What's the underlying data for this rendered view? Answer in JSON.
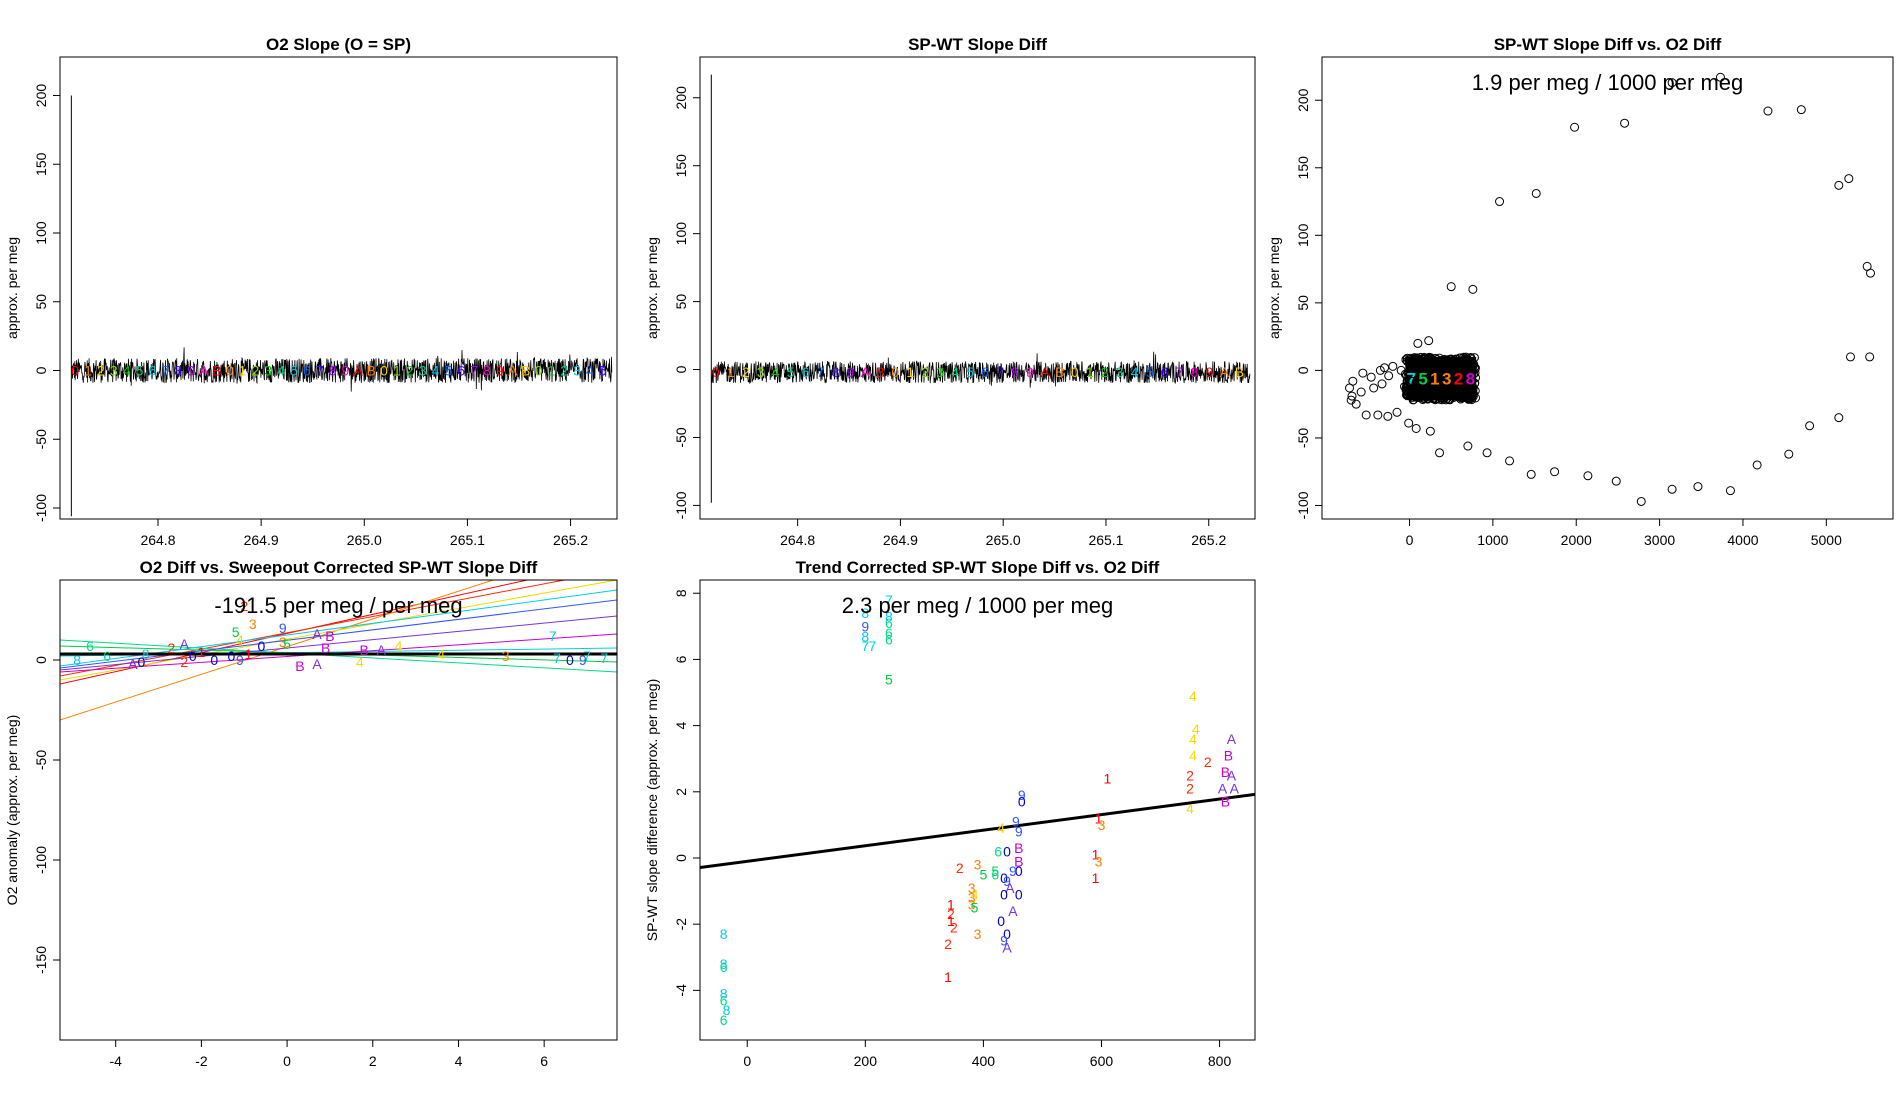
{
  "palette": {
    "digits": {
      "0": "#0000cc",
      "1": "#ff0000",
      "2": "#ff2a00",
      "3": "#ff8000",
      "4": "#f5d800",
      "5": "#00cc44",
      "6": "#00dd88",
      "7": "#00d4d4",
      "8": "#00ccee",
      "9": "#3355ff",
      "A": "#7733dd",
      "B": "#cc00cc"
    },
    "rainbow": [
      "#ff0000",
      "#ff8000",
      "#ffd000",
      "#80e000",
      "#00cc00",
      "#00cc88",
      "#00c8e0",
      "#0066ff",
      "#4400ff",
      "#aa00ff",
      "#ff00cc"
    ],
    "ink": "#000000"
  },
  "chart_data": [
    {
      "id": "o2-slope",
      "type": "line",
      "title": "O2 Slope (O = SP)",
      "xlabel": "",
      "ylabel": "approx. per meg",
      "xlim": [
        264.705,
        265.245
      ],
      "ylim": [
        -108,
        228
      ],
      "xticks": [
        264.8,
        264.9,
        265.0,
        265.1,
        265.2
      ],
      "xtick_labels": [
        "264.8",
        "264.9",
        "265.0",
        "265.1",
        "265.2"
      ],
      "yticks": [
        -100,
        -50,
        0,
        50,
        100,
        150,
        200
      ],
      "ytick_labels": [
        "-100",
        "-50",
        "0",
        "50",
        "100",
        "150",
        "200"
      ],
      "spike": {
        "x": 264.716,
        "low": -106,
        "high": 200
      },
      "series": {
        "x_start": 264.716,
        "x_end": 265.24,
        "center": 0,
        "amplitude": 9,
        "label_count": 42
      }
    },
    {
      "id": "spwt-slope-diff",
      "type": "line",
      "title": "SP-WT Slope Diff",
      "xlabel": "",
      "ylabel": "approx. per meg",
      "xlim": [
        264.705,
        265.245
      ],
      "ylim": [
        -110,
        230
      ],
      "xticks": [
        264.8,
        264.9,
        265.0,
        265.1,
        265.2
      ],
      "xtick_labels": [
        "264.8",
        "264.9",
        "265.0",
        "265.1",
        "265.2"
      ],
      "yticks": [
        -100,
        -50,
        0,
        50,
        100,
        150,
        200
      ],
      "ytick_labels": [
        "-100",
        "-50",
        "0",
        "50",
        "100",
        "150",
        "200"
      ],
      "spike": {
        "x": 264.716,
        "low": -98,
        "high": 217
      },
      "series": {
        "x_start": 264.716,
        "x_end": 265.24,
        "center": -2,
        "amplitude": 8,
        "label_count": 36
      }
    },
    {
      "id": "spwt-vs-o2",
      "type": "scatter",
      "title": "SP-WT Slope Diff vs. O2 Diff",
      "annotation": "1.9 per meg / 1000 per meg",
      "xlabel": "",
      "ylabel": "approx. per meg",
      "xlim": [
        -1050,
        5800
      ],
      "ylim": [
        -110,
        232
      ],
      "xticks": [
        0,
        1000,
        2000,
        3000,
        4000,
        5000
      ],
      "xtick_labels": [
        "0",
        "1000",
        "2000",
        "3000",
        "4000",
        "5000"
      ],
      "yticks": [
        -100,
        -50,
        0,
        50,
        100,
        150,
        200
      ],
      "ytick_labels": [
        "-100",
        "-50",
        "0",
        "50",
        "100",
        "150",
        "200"
      ],
      "points": [
        [
          3730,
          217
        ],
        [
          3150,
          213
        ],
        [
          4700,
          193
        ],
        [
          4300,
          192
        ],
        [
          2580,
          183
        ],
        [
          1980,
          180
        ],
        [
          1520,
          131
        ],
        [
          1080,
          125
        ],
        [
          5270,
          142
        ],
        [
          5150,
          137
        ],
        [
          5490,
          77
        ],
        [
          5530,
          72
        ],
        [
          5290,
          10
        ],
        [
          5520,
          10
        ],
        [
          5150,
          -35
        ],
        [
          4800,
          -41
        ],
        [
          4550,
          -62
        ],
        [
          4170,
          -70
        ],
        [
          3850,
          -89
        ],
        [
          3460,
          -86
        ],
        [
          3150,
          -88
        ],
        [
          2780,
          -97
        ],
        [
          2480,
          -82
        ],
        [
          2140,
          -78
        ],
        [
          1740,
          -75
        ],
        [
          1460,
          -77
        ],
        [
          1200,
          -67
        ],
        [
          930,
          -61
        ],
        [
          700,
          -56
        ],
        [
          360,
          -61
        ],
        [
          250,
          -45
        ],
        [
          80,
          -43
        ],
        [
          -10,
          -39
        ],
        [
          -150,
          -31
        ],
        [
          -260,
          -34
        ],
        [
          -380,
          -33
        ],
        [
          -520,
          -33
        ],
        [
          -640,
          -25
        ],
        [
          -700,
          -22
        ],
        [
          -720,
          -13
        ],
        [
          -680,
          -8
        ],
        [
          -560,
          -2
        ],
        [
          -460,
          -5
        ],
        [
          -350,
          0
        ],
        [
          -300,
          2
        ],
        [
          -250,
          -4
        ],
        [
          -200,
          3
        ],
        [
          -330,
          -10
        ],
        [
          -430,
          -13
        ],
        [
          -580,
          -16
        ],
        [
          -690,
          -19
        ],
        [
          500,
          62
        ],
        [
          760,
          60
        ],
        [
          -100,
          0
        ],
        [
          -60,
          -12
        ],
        [
          40,
          -8
        ],
        [
          100,
          20
        ],
        [
          230,
          22
        ]
      ],
      "cluster": {
        "x_min": -50,
        "x_max": 800,
        "y_min": -22,
        "y_max": 10,
        "labels": [
          "7",
          "5",
          "1",
          "3",
          "2",
          "8"
        ]
      }
    },
    {
      "id": "o2diff-vs-corrected",
      "type": "scatter",
      "title": "O2 Diff vs. Sweepout Corrected SP-WT Slope Diff",
      "annotation": "-191.5 per meg / per meg",
      "xlabel": "",
      "ylabel": "O2 anomaly (approx. per meg)",
      "xlim": [
        -5.3,
        7.7
      ],
      "ylim": [
        -190,
        40
      ],
      "xticks": [
        -4,
        -2,
        0,
        2,
        4,
        6
      ],
      "xtick_labels": [
        "-4",
        "-2",
        "0",
        "2",
        "4",
        "6"
      ],
      "yticks": [
        -150,
        -100,
        -50,
        0
      ],
      "ytick_labels": [
        "-150",
        "-100",
        "-50",
        "0"
      ],
      "fit_line": {
        "intercept": 3,
        "slope": 0
      },
      "group_lines": [
        {
          "label": "1",
          "x0": -5.3,
          "y0": -12,
          "x1": 7.7,
          "y1": 50
        },
        {
          "label": "2",
          "x0": -5.3,
          "y0": -8,
          "x1": 7.7,
          "y1": 45
        },
        {
          "label": "3",
          "x0": -5.3,
          "y0": -30,
          "x1": 7.7,
          "y1": 60
        },
        {
          "label": "4",
          "x0": -5.3,
          "y0": -10,
          "x1": 7.7,
          "y1": 40
        },
        {
          "label": "5",
          "x0": -5.3,
          "y0": 7,
          "x1": 7.7,
          "y1": -1
        },
        {
          "label": "6",
          "x0": -5.3,
          "y0": 10,
          "x1": 7.7,
          "y1": -6
        },
        {
          "label": "7",
          "x0": -5.3,
          "y0": 2,
          "x1": 7.7,
          "y1": 6
        },
        {
          "label": "8",
          "x0": -5.3,
          "y0": -3,
          "x1": 7.7,
          "y1": 35
        },
        {
          "label": "9",
          "x0": -5.3,
          "y0": -4,
          "x1": 7.7,
          "y1": 30
        },
        {
          "label": "A",
          "x0": -5.3,
          "y0": -5,
          "x1": 7.7,
          "y1": 22
        },
        {
          "label": "B",
          "x0": -5.3,
          "y0": -6,
          "x1": 7.7,
          "y1": 13
        }
      ],
      "points": [
        [
          "6",
          -4.6,
          7
        ],
        [
          "8",
          -4.9,
          0
        ],
        [
          "6",
          -4.2,
          2
        ],
        [
          "8",
          -3.3,
          3
        ],
        [
          "A",
          -3.6,
          -2
        ],
        [
          "0",
          -3.4,
          -1
        ],
        [
          "A",
          -2.4,
          8
        ],
        [
          "2",
          -2.7,
          6
        ],
        [
          "2",
          -2.4,
          -1
        ],
        [
          "1",
          -2.0,
          4
        ],
        [
          "0",
          -2.2,
          2
        ],
        [
          "0",
          -1.7,
          0
        ],
        [
          "0",
          -1.3,
          2
        ],
        [
          "9",
          -1.1,
          0
        ],
        [
          "1",
          -0.9,
          3
        ],
        [
          "2",
          -1.0,
          27
        ],
        [
          "5",
          -1.2,
          14
        ],
        [
          "3",
          -0.8,
          18
        ],
        [
          "4",
          -1.1,
          10
        ],
        [
          "9",
          -0.1,
          16
        ],
        [
          "0",
          -0.6,
          7
        ],
        [
          "3",
          -0.1,
          9
        ],
        [
          "5",
          0.0,
          8
        ],
        [
          "B",
          0.3,
          -3
        ],
        [
          "A",
          0.7,
          -2
        ],
        [
          "A",
          0.7,
          13
        ],
        [
          "B",
          1.0,
          12
        ],
        [
          "B",
          0.9,
          6
        ],
        [
          "A",
          2.2,
          5
        ],
        [
          "B",
          1.8,
          5
        ],
        [
          "4",
          1.7,
          -1
        ],
        [
          "4",
          2.6,
          7
        ],
        [
          "4",
          3.6,
          3
        ],
        [
          "3",
          5.1,
          2
        ],
        [
          "7",
          6.2,
          12
        ],
        [
          "7",
          6.3,
          1
        ],
        [
          "7",
          7.0,
          2
        ],
        [
          "7",
          7.4,
          1
        ],
        [
          "0",
          6.6,
          0
        ],
        [
          "9",
          6.9,
          0
        ]
      ]
    },
    {
      "id": "trend-corrected",
      "type": "scatter",
      "title": "Trend Corrected SP-WT Slope Diff vs. O2 Diff",
      "annotation": "2.3 per meg / 1000 per meg",
      "xlabel": "",
      "ylabel": "SP-WT slope difference (approx. per meg)",
      "xlim": [
        -80,
        860
      ],
      "ylim": [
        -5.5,
        8.4
      ],
      "xticks": [
        0,
        200,
        400,
        600,
        800
      ],
      "xtick_labels": [
        "0",
        "200",
        "400",
        "600",
        "800"
      ],
      "yticks": [
        -4,
        -2,
        0,
        2,
        4,
        6,
        8
      ],
      "ytick_labels": [
        "-4",
        "-2",
        "0",
        "2",
        "4",
        "6",
        "8"
      ],
      "fit_line": {
        "intercept": -0.1,
        "slope": 0.00235
      },
      "points": [
        [
          "7",
          240,
          7.8
        ],
        [
          "6",
          240,
          7.1
        ],
        [
          "8",
          240,
          7.3
        ],
        [
          "6",
          240,
          6.8
        ],
        [
          "6",
          240,
          6.6
        ],
        [
          "5",
          240,
          5.4
        ],
        [
          "8",
          200,
          7.4
        ],
        [
          "9",
          200,
          7.0
        ],
        [
          "8",
          200,
          6.7
        ],
        [
          "7",
          200,
          6.4
        ],
        [
          "7",
          212,
          6.4
        ],
        [
          "4",
          755,
          4.9
        ],
        [
          "4",
          760,
          3.9
        ],
        [
          "4",
          755,
          3.6
        ],
        [
          "4",
          755,
          3.1
        ],
        [
          "2",
          780,
          2.9
        ],
        [
          "2",
          750,
          2.5
        ],
        [
          "2",
          750,
          2.1
        ],
        [
          "4",
          750,
          1.5
        ],
        [
          "A",
          820,
          3.6
        ],
        [
          "B",
          815,
          3.1
        ],
        [
          "B",
          810,
          2.6
        ],
        [
          "A",
          820,
          2.5
        ],
        [
          "A",
          825,
          2.1
        ],
        [
          "A",
          805,
          2.1
        ],
        [
          "B",
          810,
          1.7
        ],
        [
          "1",
          610,
          2.4
        ],
        [
          "1",
          595,
          1.2
        ],
        [
          "3",
          600,
          1.0
        ],
        [
          "1",
          590,
          0.1
        ],
        [
          "3",
          595,
          -0.1
        ],
        [
          "1",
          590,
          -0.6
        ],
        [
          "9",
          465,
          1.9
        ],
        [
          "0",
          465,
          1.7
        ],
        [
          "9",
          455,
          1.1
        ],
        [
          "4",
          430,
          0.9
        ],
        [
          "9",
          460,
          0.8
        ],
        [
          "B",
          460,
          0.3
        ],
        [
          "0",
          440,
          0.2
        ],
        [
          "B",
          460,
          -0.1
        ],
        [
          "0",
          460,
          -0.4
        ],
        [
          "9",
          450,
          -0.4
        ],
        [
          "0",
          435,
          -0.6
        ],
        [
          "9",
          440,
          -0.7
        ],
        [
          "A",
          445,
          -0.9
        ],
        [
          "0",
          460,
          -1.1
        ],
        [
          "0",
          435,
          -1.1
        ],
        [
          "A",
          450,
          -1.6
        ],
        [
          "0",
          430,
          -1.9
        ],
        [
          "0",
          440,
          -2.3
        ],
        [
          "9",
          435,
          -2.5
        ],
        [
          "A",
          440,
          -2.7
        ],
        [
          "2",
          360,
          -0.3
        ],
        [
          "3",
          390,
          -0.2
        ],
        [
          "5",
          420,
          -0.4
        ],
        [
          "6",
          425,
          0.2
        ],
        [
          "5",
          400,
          -0.5
        ],
        [
          "6",
          420,
          -0.5
        ],
        [
          "3",
          380,
          -0.9
        ],
        [
          "3",
          380,
          -1.2
        ],
        [
          "3",
          380,
          -1.4
        ],
        [
          "5",
          385,
          -1.5
        ],
        [
          "4",
          385,
          -1.1
        ],
        [
          "3",
          390,
          -2.3
        ],
        [
          "1",
          345,
          -1.4
        ],
        [
          "2",
          345,
          -1.7
        ],
        [
          "1",
          345,
          -1.9
        ],
        [
          "2",
          350,
          -2.1
        ],
        [
          "2",
          340,
          -2.6
        ],
        [
          "1",
          340,
          -3.6
        ],
        [
          "8",
          -40,
          -2.3
        ],
        [
          "8",
          -40,
          -3.2
        ],
        [
          "6",
          -40,
          -3.3
        ],
        [
          "8",
          -40,
          -4.1
        ],
        [
          "6",
          -40,
          -4.3
        ],
        [
          "8",
          -35,
          -4.6
        ],
        [
          "6",
          -40,
          -4.9
        ]
      ]
    }
  ]
}
